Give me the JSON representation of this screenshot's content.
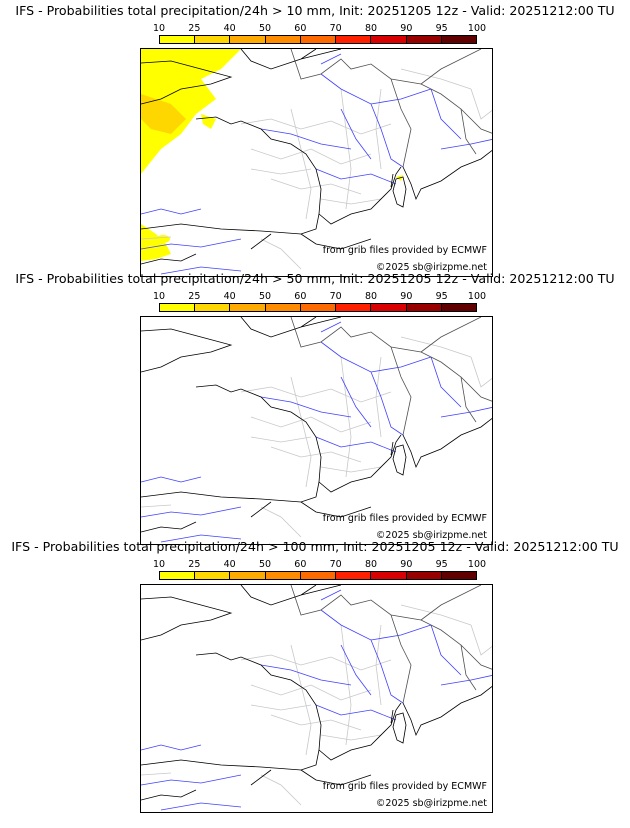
{
  "colorbar": {
    "ticks": [
      "10",
      "25",
      "40",
      "50",
      "60",
      "70",
      "80",
      "90",
      "95",
      "100"
    ],
    "colors": [
      "#ffff00",
      "#ffd700",
      "#ffaa00",
      "#ff8c00",
      "#ff6a00",
      "#ff2000",
      "#d80000",
      "#980000",
      "#600000"
    ]
  },
  "panels": [
    {
      "title": "IFS - Probabilities total precipitation/24h > 10 mm, Init: 20251205 12z - Valid: 20251212:00 TU",
      "threshold_mm": 10
    },
    {
      "title": "IFS - Probabilities total precipitation/24h > 50 mm, Init: 20251205 12z - Valid: 20251212:00 TU",
      "threshold_mm": 50
    },
    {
      "title": "IFS - Probabilities total precipitation/24h > 100 mm, Init: 20251205 12z - Valid: 20251212:00 TU",
      "threshold_mm": 100
    }
  ],
  "credits": {
    "source": "from grib files provided by ECMWF",
    "copyright": "©2025 sb@irizpme.net"
  }
}
